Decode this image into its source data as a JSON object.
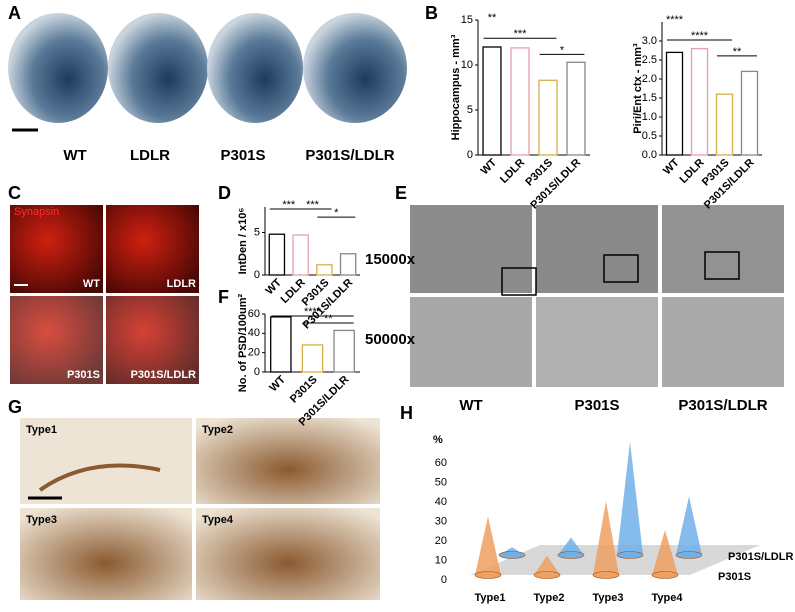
{
  "panels": {
    "letters": [
      "A",
      "B",
      "C",
      "D",
      "E",
      "F",
      "G",
      "H"
    ]
  },
  "panel_a": {
    "labels": [
      "WT",
      "LDLR",
      "P301S",
      "P301S/LDLR"
    ]
  },
  "panel_c": {
    "stain": "Synapsin",
    "labels": [
      "WT",
      "LDLR",
      "P301S",
      "P301S/LDLR"
    ]
  },
  "panel_e": {
    "magnifications": [
      "15000x",
      "50000x"
    ],
    "labels": [
      "WT",
      "P301S",
      "P301S/LDLR"
    ]
  },
  "panel_g": {
    "labels": [
      "Type1",
      "Type2",
      "Type3",
      "Type4"
    ]
  },
  "chart_data": [
    {
      "type": "bar",
      "ylabel": "Hippocampus - mm³",
      "categories": [
        "WT",
        "LDLR",
        "P301S",
        "P301S/LDLR"
      ],
      "values": [
        12,
        11.9,
        8.3,
        10.3
      ],
      "colors": [
        "#000000",
        "#e8a0a8",
        "#d4b04a",
        "#888888"
      ],
      "ylim": [
        0,
        15
      ],
      "yticks": [
        0,
        5,
        10,
        15
      ],
      "annotations": [
        "**",
        "***",
        "*"
      ]
    },
    {
      "type": "bar",
      "ylabel": "Piri/Ent ctx - mm³",
      "categories": [
        "WT",
        "LDLR",
        "P301S",
        "P301S/LDLR"
      ],
      "values": [
        2.7,
        2.8,
        1.6,
        2.2
      ],
      "colors": [
        "#000000",
        "#e8a0a8",
        "#d4b04a",
        "#888888"
      ],
      "ylim": [
        0,
        3.5
      ],
      "yticks": [
        {
          "value": 0,
          "label": "0.0"
        },
        {
          "value": 0.5,
          "label": "0.5"
        },
        {
          "value": 1,
          "label": "1.0"
        },
        {
          "value": 1.5,
          "label": "1.5"
        },
        {
          "value": 2,
          "label": "2.0"
        },
        {
          "value": 2.5,
          "label": "2.5"
        },
        {
          "value": 3,
          "label": "3.0"
        }
      ],
      "annotations": [
        "****",
        "****",
        "**"
      ]
    },
    {
      "type": "bar",
      "ylabel": "IntDen / x10⁶",
      "categories": [
        "WT",
        "LDLR",
        "P301S",
        "P301S/LDLR"
      ],
      "values": [
        4.8,
        4.7,
        1.2,
        2.5
      ],
      "colors": [
        "#000000",
        "#e8a0a8",
        "#d4b04a",
        "#888888"
      ],
      "ylim": [
        0,
        8
      ],
      "yticks": [
        0,
        5
      ],
      "annotations": [
        "***",
        "***",
        "*"
      ]
    },
    {
      "type": "bar",
      "ylabel": "No. of PSD/100um²",
      "categories": [
        "WT",
        "P301S",
        "P301S/LDLR"
      ],
      "values": [
        57,
        28,
        43
      ],
      "colors": [
        "#000000",
        "#d4b04a",
        "#888888"
      ],
      "ylim": [
        0,
        60
      ],
      "yticks": [
        0,
        20,
        40,
        60
      ],
      "annotations": [
        "****",
        "**"
      ]
    },
    {
      "type": "cone",
      "ylabel": "%",
      "categories": [
        "Type1",
        "Type2",
        "Type3",
        "Type4"
      ],
      "series": [
        {
          "name": "P301S",
          "color": "#f0a060",
          "values": [
            30,
            10,
            38,
            23
          ]
        },
        {
          "name": "P301S/LDLR",
          "color": "#70b0e8",
          "values": [
            4,
            9,
            58,
            30
          ]
        }
      ],
      "ylim": [
        0,
        60
      ],
      "yticks": [
        0,
        10,
        20,
        30,
        40,
        50,
        60
      ]
    }
  ]
}
